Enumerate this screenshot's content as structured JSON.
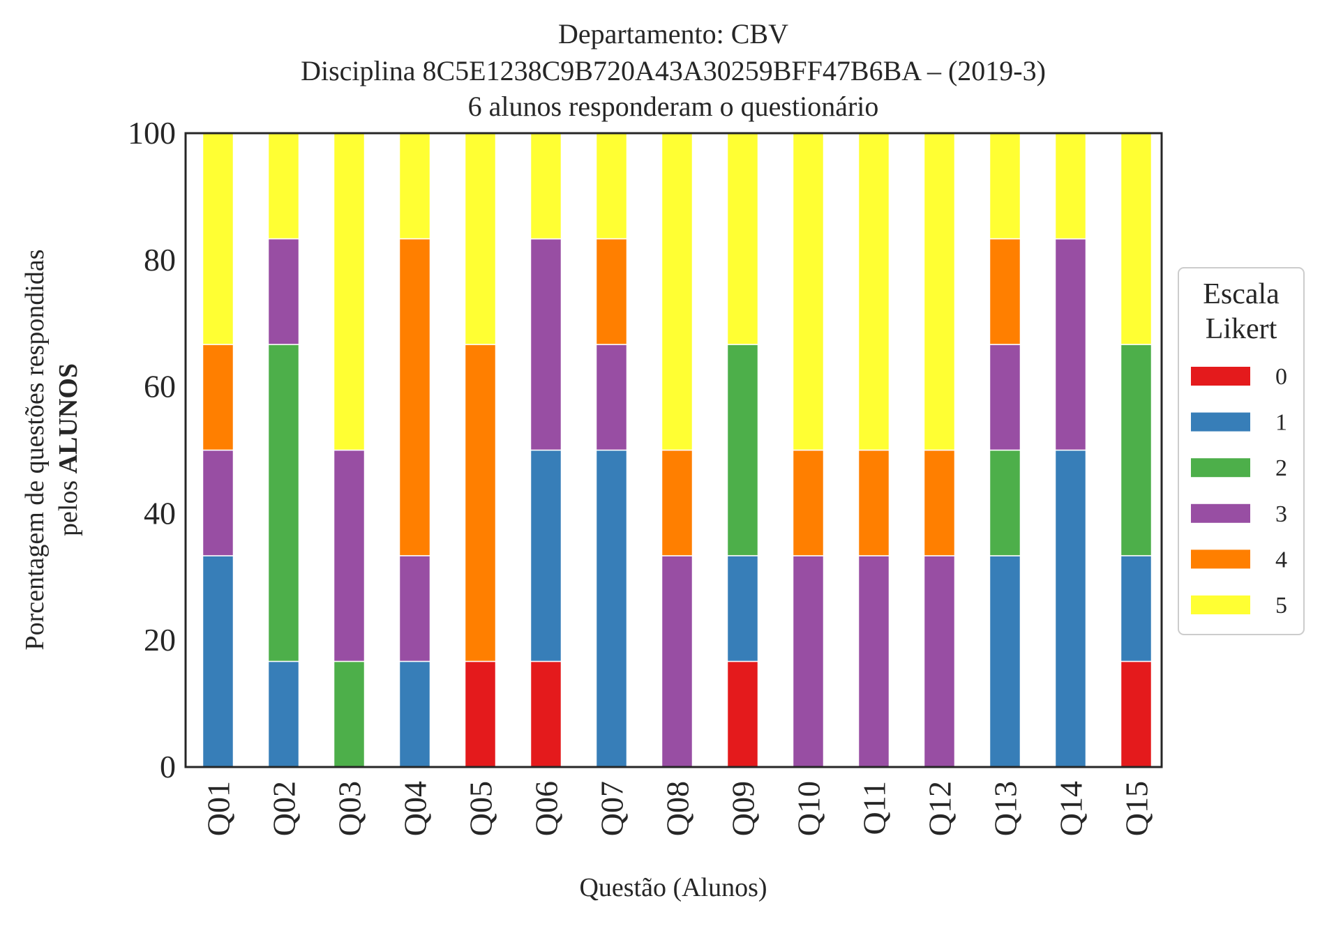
{
  "chart_data": {
    "type": "bar",
    "stacked": true,
    "title": {
      "line1": "Departamento: CBV",
      "line2": "Disciplina 8C5E1238C9B720A43A30259BFF47B6BA – (2019-3)",
      "line3": "6 alunos responderam o questionário"
    },
    "xlabel": "Questão (Alunos)",
    "ylabel": {
      "line1": "Porcentagem de questões respondidas",
      "line2_prefix": "pelos ",
      "line2_bold": "ALUNOS"
    },
    "ylim": [
      0,
      100
    ],
    "yticks": [
      "0",
      "20",
      "40",
      "60",
      "80",
      "100"
    ],
    "grid": false,
    "legend_position": "right",
    "legend_title": {
      "line1": "Escala",
      "line2": "Likert"
    },
    "categories": [
      "Q01",
      "Q02",
      "Q03",
      "Q04",
      "Q05",
      "Q06",
      "Q07",
      "Q08",
      "Q09",
      "Q10",
      "Q11",
      "Q12",
      "Q13",
      "Q14",
      "Q15"
    ],
    "series": [
      {
        "name": "0",
        "color": "#e41a1c",
        "values": [
          0,
          0,
          0,
          0,
          16.67,
          16.67,
          0,
          0,
          16.67,
          0,
          0,
          0,
          0,
          0,
          16.67
        ]
      },
      {
        "name": "1",
        "color": "#377eb8",
        "values": [
          33.33,
          16.67,
          0,
          16.67,
          0,
          33.33,
          50,
          0,
          16.67,
          0,
          0,
          0,
          33.33,
          50,
          16.67
        ]
      },
      {
        "name": "2",
        "color": "#4daf4a",
        "values": [
          0,
          50,
          16.67,
          0,
          0,
          0,
          0,
          0,
          33.33,
          0,
          0,
          0,
          16.67,
          0,
          33.33
        ]
      },
      {
        "name": "3",
        "color": "#984ea3",
        "values": [
          16.67,
          16.67,
          33.33,
          16.67,
          0,
          33.33,
          16.67,
          33.33,
          0,
          33.33,
          33.33,
          33.33,
          16.67,
          33.33,
          0
        ]
      },
      {
        "name": "4",
        "color": "#ff7f00",
        "values": [
          16.67,
          0,
          0,
          50,
          50,
          0,
          16.67,
          16.67,
          0,
          16.67,
          16.67,
          16.67,
          16.67,
          0,
          0
        ]
      },
      {
        "name": "5",
        "color": "#ffff33",
        "values": [
          33.33,
          16.67,
          50,
          16.67,
          33.33,
          16.67,
          16.67,
          50,
          33.33,
          50,
          50,
          50,
          16.67,
          16.67,
          33.33
        ]
      }
    ]
  }
}
